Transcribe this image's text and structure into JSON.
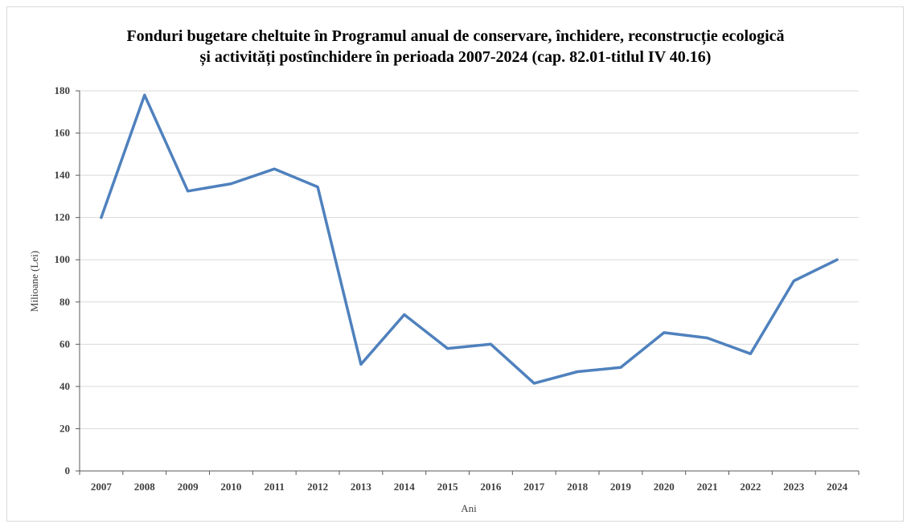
{
  "chart_data": {
    "type": "line",
    "title_line1": "Fonduri bugetare cheltuite în Programul anual de conservare, închidere, reconstrucție ecologică",
    "title_line2": "și activități postînchidere în perioada 2007-2024 (cap. 82.01-titlul IV 40.16)",
    "xlabel": "Ani",
    "ylabel": "Milioane  (Lei)",
    "ylim": [
      0,
      180
    ],
    "yticks": [
      0,
      20,
      40,
      60,
      80,
      100,
      120,
      140,
      160,
      180
    ],
    "categories": [
      "2007",
      "2008",
      "2009",
      "2010",
      "2011",
      "2012",
      "2013",
      "2014",
      "2015",
      "2016",
      "2017",
      "2018",
      "2019",
      "2020",
      "2021",
      "2022",
      "2023",
      "2024"
    ],
    "series": [
      {
        "values": [
          120,
          178,
          132.5,
          136,
          143,
          134.5,
          50.5,
          74,
          58,
          60,
          41.5,
          47,
          49,
          65.5,
          63,
          55.5,
          90,
          100
        ],
        "color": "#4f81bd"
      }
    ],
    "grid": true,
    "legend": "none"
  }
}
